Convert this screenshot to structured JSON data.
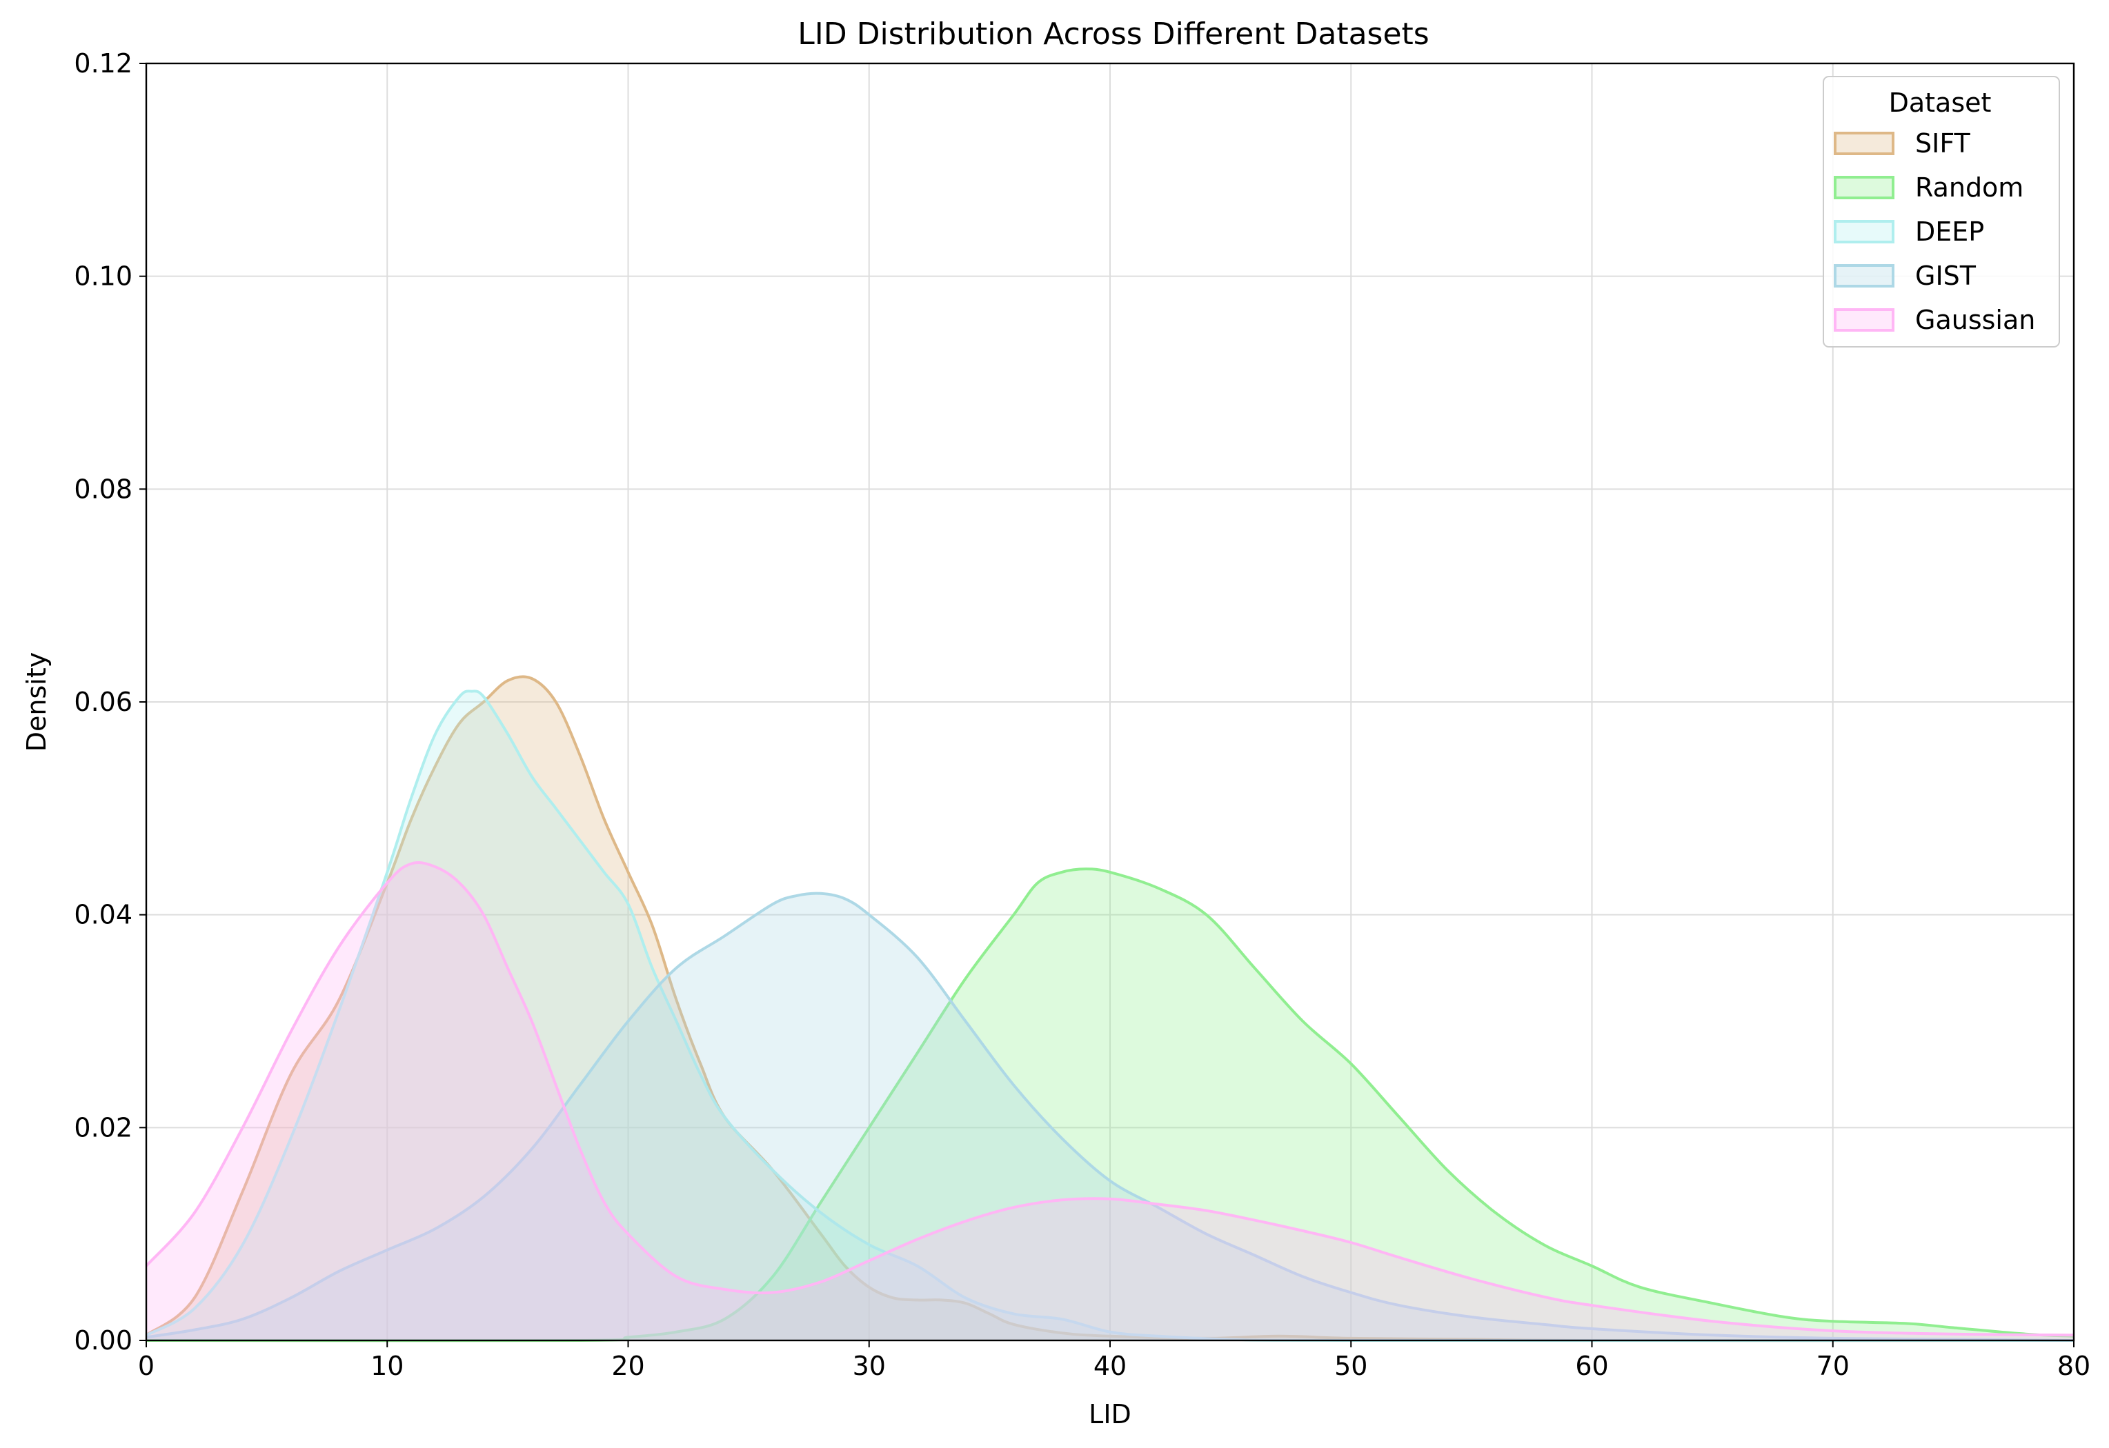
{
  "chart_data": {
    "type": "area",
    "title": "LID Distribution Across Different Datasets",
    "xlabel": "LID",
    "ylabel": "Density",
    "xlim": [
      0,
      80
    ],
    "ylim": [
      0,
      0.12
    ],
    "xticks": [
      0,
      10,
      20,
      30,
      40,
      50,
      60,
      70,
      80
    ],
    "xtick_labels": [
      "0",
      "10",
      "20",
      "30",
      "40",
      "50",
      "60",
      "70",
      "80"
    ],
    "yticks": [
      0,
      0.02,
      0.04,
      0.06,
      0.08,
      0.1,
      0.12
    ],
    "ytick_labels": [
      "0.00",
      "0.02",
      "0.04",
      "0.06",
      "0.08",
      "0.10",
      "0.12"
    ],
    "grid": true,
    "legend": {
      "title": "Dataset",
      "placement": "top-right"
    },
    "series": [
      {
        "name": "SIFT",
        "color": "#deb887",
        "points": [
          [
            0,
            0.0005
          ],
          [
            2,
            0.004
          ],
          [
            4,
            0.014
          ],
          [
            6,
            0.025
          ],
          [
            8,
            0.032
          ],
          [
            10,
            0.043
          ],
          [
            11,
            0.049
          ],
          [
            12,
            0.054
          ],
          [
            13,
            0.058
          ],
          [
            14,
            0.06
          ],
          [
            15,
            0.062
          ],
          [
            16,
            0.0622
          ],
          [
            17,
            0.06
          ],
          [
            18,
            0.055
          ],
          [
            19,
            0.049
          ],
          [
            20,
            0.044
          ],
          [
            21,
            0.039
          ],
          [
            22,
            0.032
          ],
          [
            23,
            0.026
          ],
          [
            24,
            0.021
          ],
          [
            26,
            0.016
          ],
          [
            28,
            0.01
          ],
          [
            29,
            0.007
          ],
          [
            30,
            0.005
          ],
          [
            31,
            0.004
          ],
          [
            32,
            0.0038
          ],
          [
            33,
            0.0038
          ],
          [
            34,
            0.0035
          ],
          [
            35,
            0.0025
          ],
          [
            36,
            0.0015
          ],
          [
            38,
            0.0007
          ],
          [
            40,
            0.0004
          ],
          [
            44,
            0.0002
          ],
          [
            47,
            0.0004
          ],
          [
            50,
            0.0002
          ],
          [
            55,
            0.0001
          ],
          [
            60,
            0.0
          ],
          [
            80,
            0.0
          ]
        ]
      },
      {
        "name": "Random",
        "color": "#90ee90",
        "points": [
          [
            0,
            0.0
          ],
          [
            18,
            0.0
          ],
          [
            20,
            0.0003
          ],
          [
            22,
            0.0008
          ],
          [
            24,
            0.002
          ],
          [
            26,
            0.006
          ],
          [
            28,
            0.013
          ],
          [
            30,
            0.02
          ],
          [
            32,
            0.027
          ],
          [
            34,
            0.034
          ],
          [
            36,
            0.04
          ],
          [
            37,
            0.043
          ],
          [
            38,
            0.044
          ],
          [
            39,
            0.0443
          ],
          [
            40,
            0.044
          ],
          [
            42,
            0.0425
          ],
          [
            44,
            0.04
          ],
          [
            46,
            0.035
          ],
          [
            48,
            0.03
          ],
          [
            50,
            0.026
          ],
          [
            52,
            0.021
          ],
          [
            54,
            0.016
          ],
          [
            56,
            0.012
          ],
          [
            58,
            0.009
          ],
          [
            60,
            0.007
          ],
          [
            62,
            0.005
          ],
          [
            65,
            0.0035
          ],
          [
            68,
            0.0022
          ],
          [
            70,
            0.0018
          ],
          [
            73,
            0.0016
          ],
          [
            75,
            0.0012
          ],
          [
            78,
            0.0006
          ],
          [
            80,
            0.0004
          ]
        ]
      },
      {
        "name": "DEEP",
        "color": "#afeeee",
        "points": [
          [
            0,
            0.0005
          ],
          [
            2,
            0.003
          ],
          [
            4,
            0.009
          ],
          [
            6,
            0.019
          ],
          [
            8,
            0.031
          ],
          [
            10,
            0.044
          ],
          [
            11,
            0.051
          ],
          [
            12,
            0.057
          ],
          [
            13,
            0.0605
          ],
          [
            13.5,
            0.061
          ],
          [
            14,
            0.0605
          ],
          [
            15,
            0.057
          ],
          [
            16,
            0.053
          ],
          [
            17,
            0.05
          ],
          [
            18,
            0.047
          ],
          [
            19,
            0.044
          ],
          [
            20,
            0.041
          ],
          [
            21,
            0.035
          ],
          [
            22,
            0.03
          ],
          [
            23,
            0.025
          ],
          [
            24,
            0.021
          ],
          [
            26,
            0.016
          ],
          [
            28,
            0.012
          ],
          [
            30,
            0.009
          ],
          [
            32,
            0.007
          ],
          [
            34,
            0.004
          ],
          [
            36,
            0.0025
          ],
          [
            38,
            0.002
          ],
          [
            40,
            0.0008
          ],
          [
            42,
            0.0004
          ],
          [
            45,
            0.0001
          ],
          [
            50,
            0.0
          ],
          [
            80,
            0.0
          ]
        ]
      },
      {
        "name": "GIST",
        "color": "#add8e6",
        "points": [
          [
            0,
            0.0003
          ],
          [
            2,
            0.001
          ],
          [
            4,
            0.002
          ],
          [
            6,
            0.004
          ],
          [
            8,
            0.0065
          ],
          [
            10,
            0.0085
          ],
          [
            12,
            0.0105
          ],
          [
            14,
            0.0135
          ],
          [
            16,
            0.018
          ],
          [
            18,
            0.024
          ],
          [
            20,
            0.03
          ],
          [
            22,
            0.035
          ],
          [
            24,
            0.038
          ],
          [
            26,
            0.041
          ],
          [
            27,
            0.0418
          ],
          [
            28,
            0.042
          ],
          [
            29,
            0.0415
          ],
          [
            30,
            0.04
          ],
          [
            32,
            0.036
          ],
          [
            34,
            0.03
          ],
          [
            36,
            0.024
          ],
          [
            38,
            0.019
          ],
          [
            40,
            0.015
          ],
          [
            42,
            0.0125
          ],
          [
            44,
            0.01
          ],
          [
            46,
            0.008
          ],
          [
            48,
            0.006
          ],
          [
            50,
            0.0045
          ],
          [
            52,
            0.0033
          ],
          [
            55,
            0.0022
          ],
          [
            58,
            0.0015
          ],
          [
            60,
            0.0011
          ],
          [
            65,
            0.0005
          ],
          [
            70,
            0.0002
          ],
          [
            75,
            0.0001
          ],
          [
            80,
            0.0
          ]
        ]
      },
      {
        "name": "Gaussian",
        "color": "#ffb6f5",
        "points": [
          [
            0,
            0.007
          ],
          [
            2,
            0.012
          ],
          [
            4,
            0.02
          ],
          [
            6,
            0.029
          ],
          [
            8,
            0.037
          ],
          [
            10,
            0.043
          ],
          [
            11,
            0.0448
          ],
          [
            12,
            0.0445
          ],
          [
            13,
            0.043
          ],
          [
            14,
            0.04
          ],
          [
            15,
            0.035
          ],
          [
            16,
            0.03
          ],
          [
            17,
            0.024
          ],
          [
            18,
            0.018
          ],
          [
            19,
            0.013
          ],
          [
            20,
            0.01
          ],
          [
            22,
            0.006
          ],
          [
            24,
            0.0048
          ],
          [
            26,
            0.0045
          ],
          [
            28,
            0.0055
          ],
          [
            30,
            0.0075
          ],
          [
            32,
            0.0095
          ],
          [
            34,
            0.0112
          ],
          [
            36,
            0.0125
          ],
          [
            38,
            0.0132
          ],
          [
            40,
            0.0133
          ],
          [
            42,
            0.0128
          ],
          [
            44,
            0.0122
          ],
          [
            46,
            0.0113
          ],
          [
            48,
            0.0103
          ],
          [
            50,
            0.0092
          ],
          [
            52,
            0.0078
          ],
          [
            55,
            0.0058
          ],
          [
            58,
            0.0041
          ],
          [
            60,
            0.0033
          ],
          [
            65,
            0.0018
          ],
          [
            70,
            0.0009
          ],
          [
            75,
            0.0006
          ],
          [
            80,
            0.0005
          ]
        ]
      }
    ]
  }
}
